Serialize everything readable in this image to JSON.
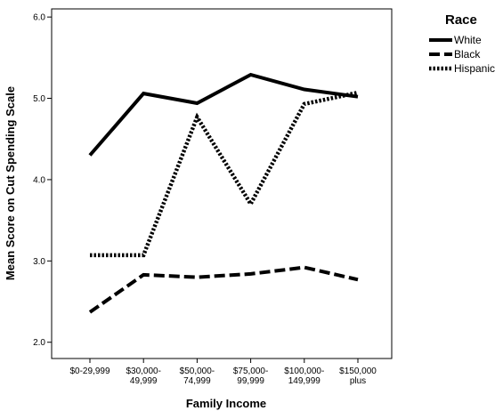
{
  "chart_data": {
    "type": "line",
    "xlabel": "Family Income",
    "ylabel": "Mean Score on Cut Spending Scale",
    "ylim": [
      1.8,
      6.1
    ],
    "yticks": [
      "2.0",
      "3.0",
      "4.0",
      "5.0",
      "6.0"
    ],
    "categories": [
      [
        "$0-29,999"
      ],
      [
        "$30,000-",
        "49,999"
      ],
      [
        "$50,000-",
        "74,999"
      ],
      [
        "$75,000-",
        "99,999"
      ],
      [
        "$100,000-",
        "149,999"
      ],
      [
        "$150,000",
        "plus"
      ]
    ],
    "legend": {
      "title": "Race",
      "position": "right"
    },
    "grid": false,
    "series": [
      {
        "name": "White",
        "style": "solid",
        "color": "#000000",
        "values": [
          4.3,
          5.06,
          4.94,
          5.29,
          5.11,
          5.02
        ]
      },
      {
        "name": "Black",
        "style": "dashed",
        "color": "#000000",
        "values": [
          2.37,
          2.83,
          2.8,
          2.84,
          2.92,
          2.77
        ]
      },
      {
        "name": "Hispanic",
        "style": "dotted",
        "color": "#000000",
        "values": [
          3.07,
          3.07,
          4.77,
          3.7,
          4.93,
          5.07
        ]
      }
    ]
  }
}
